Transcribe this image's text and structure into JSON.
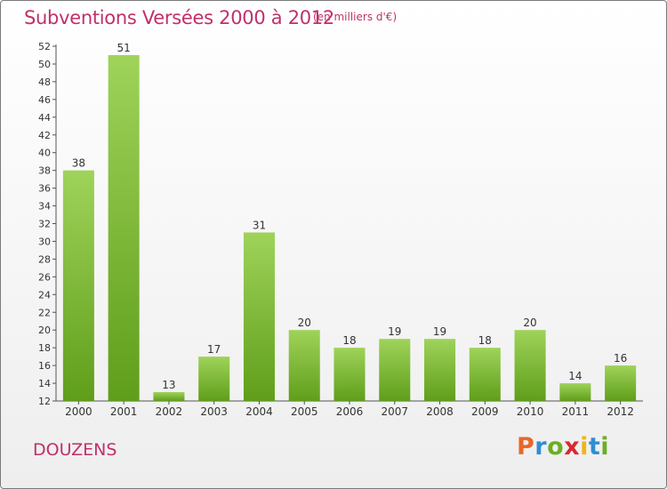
{
  "header": {
    "title": "Subventions Versées 2000 à 2012",
    "unit": "(en milliers d'€)"
  },
  "footer": {
    "commune": "DOUZENS",
    "logo_letters": [
      "P",
      "r",
      "o",
      "x",
      "i",
      "t",
      "i"
    ],
    "logo_colors": [
      "#e8672a",
      "#2f8ed1",
      "#6cae24",
      "#d9282f",
      "#f2b416",
      "#2f8ed1",
      "#6cae24"
    ]
  },
  "chart_data": {
    "type": "bar",
    "title": "Subventions Versées 2000 à 2012",
    "subtitle": "(en milliers d'€)",
    "categories": [
      "2000",
      "2001",
      "2002",
      "2003",
      "2004",
      "2005",
      "2006",
      "2007",
      "2008",
      "2009",
      "2010",
      "2011",
      "2012"
    ],
    "values": [
      38,
      51,
      13,
      17,
      31,
      20,
      18,
      19,
      19,
      18,
      20,
      14,
      16
    ],
    "ylim": [
      12,
      52
    ],
    "ytick_step": 2,
    "grid": false,
    "bar_color_top": "#9fd35a",
    "bar_color_bottom": "#5f9e1a",
    "text_color": "#333333"
  }
}
